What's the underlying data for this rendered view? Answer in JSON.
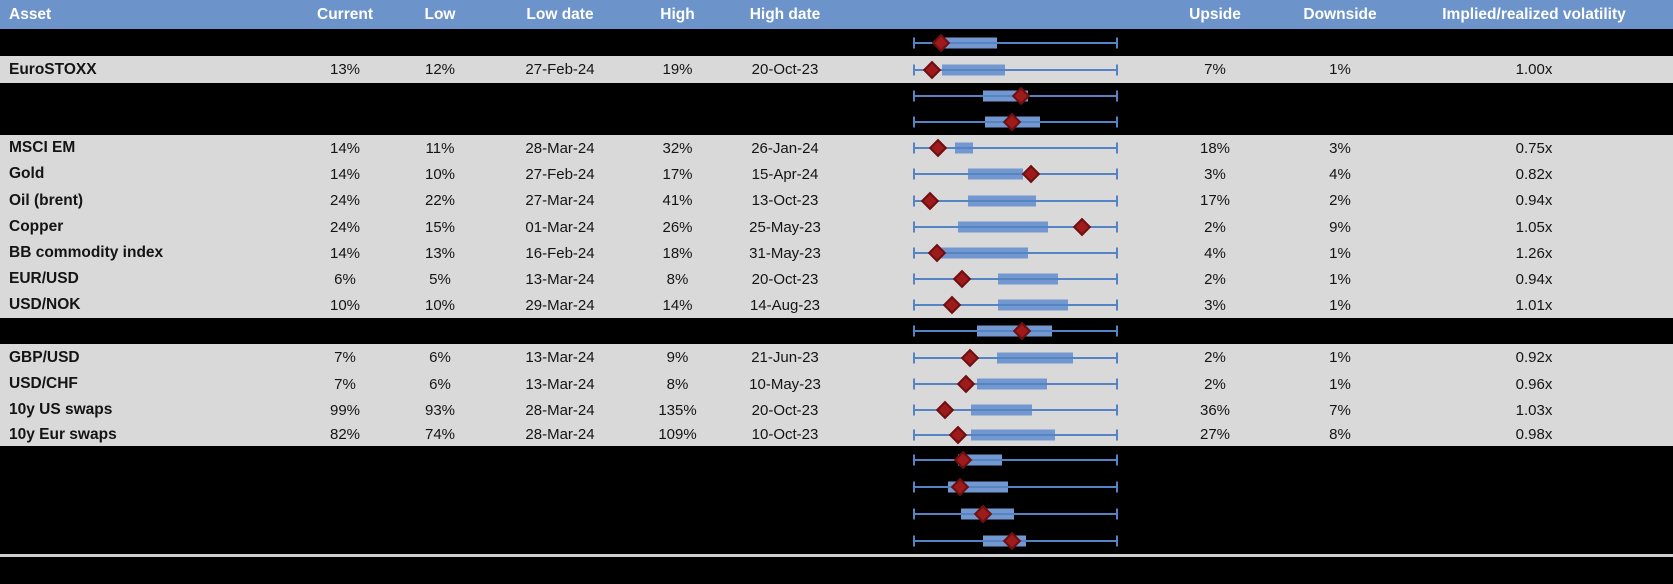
{
  "header": {
    "columns": [
      {
        "key": "asset",
        "label": "Asset"
      },
      {
        "key": "current",
        "label": "Current"
      },
      {
        "key": "low",
        "label": "Low"
      },
      {
        "key": "low_date",
        "label": "Low date"
      },
      {
        "key": "high",
        "label": "High"
      },
      {
        "key": "high_date",
        "label": "High date"
      },
      {
        "key": "plot",
        "label": ""
      },
      {
        "key": "upside",
        "label": "Upside"
      },
      {
        "key": "downside",
        "label": "Downside"
      },
      {
        "key": "implied",
        "label": "Implied/realized volatility"
      }
    ]
  },
  "colors": {
    "header_bg": "#6C93CA",
    "header_text": "#FFFFFF",
    "row_bg": "#D9D9D9",
    "hidden_row_bg": "#000000",
    "text": "#141414",
    "box_fill": "#7397CF",
    "whisker": "#5484C4",
    "marker_fill": "#9E1A1B",
    "marker_border": "#6E1011",
    "separator_line": "#CFCFCF"
  },
  "chart_data": {
    "type": "table",
    "note": "Each row embeds a horizontal box plot; no numeric axis is shown, so box values (lo, q1, q3, hi, marker) are relative positions 0-100 across the plot track. Rows with kind 'plot' are blacked-out rows where only the box plot is visible.",
    "rows": [
      {
        "kind": "plot",
        "box": {
          "lo": 0,
          "q1": 15.6,
          "q3": 41.0,
          "hi": 100,
          "marker": 13.7
        }
      },
      {
        "kind": "data",
        "asset": "EuroSTOXX",
        "current": "13%",
        "low": "12%",
        "low_date": "27-Feb-24",
        "high": "19%",
        "high_date": "20-Oct-23",
        "upside": "7%",
        "downside": "1%",
        "implied_realized": "1.00x",
        "box": {
          "lo": 0,
          "q1": 14.1,
          "q3": 44.9,
          "hi": 100,
          "marker": 9.3
        }
      },
      {
        "kind": "plot",
        "box": {
          "lo": 0,
          "q1": 34.1,
          "q3": 56.1,
          "hi": 100,
          "marker": 52.7
        }
      },
      {
        "kind": "plot",
        "box": {
          "lo": 0,
          "q1": 35.1,
          "q3": 62.0,
          "hi": 100,
          "marker": 48.3
        }
      },
      {
        "kind": "data",
        "asset": "MSCI EM",
        "current": "14%",
        "low": "11%",
        "low_date": "28-Mar-24",
        "high": "32%",
        "high_date": "26-Jan-24",
        "upside": "18%",
        "downside": "3%",
        "implied_realized": "0.75x",
        "box": {
          "lo": 0,
          "q1": 20.5,
          "q3": 29.3,
          "hi": 100,
          "marker": 12.2
        }
      },
      {
        "kind": "data",
        "asset": "Gold",
        "current": "14%",
        "low": "10%",
        "low_date": "27-Feb-24",
        "high": "17%",
        "high_date": "15-Apr-24",
        "upside": "3%",
        "downside": "4%",
        "implied_realized": "0.82x",
        "box": {
          "lo": 0,
          "q1": 26.8,
          "q3": 53.7,
          "hi": 100,
          "marker": 57.6
        }
      },
      {
        "kind": "data",
        "asset": "Oil (brent)",
        "current": "24%",
        "low": "22%",
        "low_date": "27-Mar-24",
        "high": "41%",
        "high_date": "13-Oct-23",
        "upside": "17%",
        "downside": "2%",
        "implied_realized": "0.94x",
        "box": {
          "lo": 0,
          "q1": 26.8,
          "q3": 60.0,
          "hi": 100,
          "marker": 8.3
        }
      },
      {
        "kind": "data",
        "asset": "Copper",
        "current": "24%",
        "low": "15%",
        "low_date": "01-Mar-24",
        "high": "26%",
        "high_date": "25-May-23",
        "upside": "2%",
        "downside": "9%",
        "implied_realized": "1.05x",
        "box": {
          "lo": 0,
          "q1": 22.0,
          "q3": 65.9,
          "hi": 100,
          "marker": 82.4
        }
      },
      {
        "kind": "data",
        "asset": "BB commodity index",
        "current": "14%",
        "low": "13%",
        "low_date": "16-Feb-24",
        "high": "18%",
        "high_date": "31-May-23",
        "upside": "4%",
        "downside": "1%",
        "implied_realized": "1.26x",
        "box": {
          "lo": 0,
          "q1": 13.2,
          "q3": 56.1,
          "hi": 100,
          "marker": 11.7
        }
      },
      {
        "kind": "data",
        "asset": "EUR/USD",
        "current": "6%",
        "low": "5%",
        "low_date": "13-Mar-24",
        "high": "8%",
        "high_date": "20-Oct-23",
        "upside": "2%",
        "downside": "1%",
        "implied_realized": "0.94x",
        "box": {
          "lo": 0,
          "q1": 41.5,
          "q3": 70.7,
          "hi": 100,
          "marker": 23.9
        }
      },
      {
        "kind": "data",
        "asset": "USD/NOK",
        "current": "10%",
        "low": "10%",
        "low_date": "29-Mar-24",
        "high": "14%",
        "high_date": "14-Aug-23",
        "upside": "3%",
        "downside": "1%",
        "implied_realized": "1.01x",
        "box": {
          "lo": 0,
          "q1": 41.5,
          "q3": 75.6,
          "hi": 100,
          "marker": 19.0
        }
      },
      {
        "kind": "plot",
        "box": {
          "lo": 0,
          "q1": 31.2,
          "q3": 67.8,
          "hi": 100,
          "marker": 53.2
        }
      },
      {
        "kind": "data",
        "asset": "GBP/USD",
        "current": "7%",
        "low": "6%",
        "low_date": "13-Mar-24",
        "high": "9%",
        "high_date": "21-Jun-23",
        "upside": "2%",
        "downside": "1%",
        "implied_realized": "0.92x",
        "box": {
          "lo": 0,
          "q1": 41.0,
          "q3": 78.0,
          "hi": 100,
          "marker": 27.8
        }
      },
      {
        "kind": "data",
        "asset": "USD/CHF",
        "current": "7%",
        "low": "6%",
        "low_date": "13-Mar-24",
        "high": "8%",
        "high_date": "10-May-23",
        "upside": "2%",
        "downside": "1%",
        "implied_realized": "0.96x",
        "box": {
          "lo": 0,
          "q1": 31.2,
          "q3": 65.4,
          "hi": 100,
          "marker": 25.9
        }
      },
      {
        "kind": "data",
        "asset": "10y US swaps",
        "current": "99%",
        "low": "93%",
        "low_date": "28-Mar-24",
        "high": "135%",
        "high_date": "20-Oct-23",
        "upside": "36%",
        "downside": "7%",
        "implied_realized": "1.03x",
        "box": {
          "lo": 0,
          "q1": 28.3,
          "q3": 58.0,
          "hi": 100,
          "marker": 15.6
        }
      },
      {
        "kind": "data",
        "asset": "10y Eur swaps",
        "current": "82%",
        "low": "74%",
        "low_date": "28-Mar-24",
        "high": "109%",
        "high_date": "10-Oct-23",
        "upside": "27%",
        "downside": "8%",
        "implied_realized": "0.98x",
        "box": {
          "lo": 0,
          "q1": 28.3,
          "q3": 69.3,
          "hi": 100,
          "marker": 22.0
        }
      },
      {
        "kind": "plot",
        "box": {
          "lo": 0,
          "q1": 22.0,
          "q3": 43.4,
          "hi": 100,
          "marker": 24.4
        }
      },
      {
        "kind": "plot",
        "box": {
          "lo": 0,
          "q1": 17.1,
          "q3": 46.3,
          "hi": 100,
          "marker": 22.9
        }
      },
      {
        "kind": "plot",
        "box": {
          "lo": 0,
          "q1": 23.4,
          "q3": 49.3,
          "hi": 100,
          "marker": 34.1
        }
      },
      {
        "kind": "plot",
        "box": {
          "lo": 0,
          "q1": 34.1,
          "q3": 55.1,
          "hi": 100,
          "marker": 48.3
        }
      }
    ]
  }
}
